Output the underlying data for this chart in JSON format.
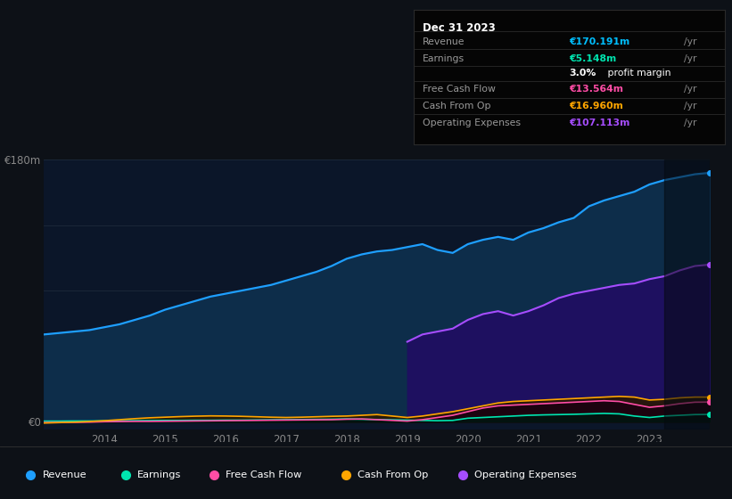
{
  "bg_color": "#0d1117",
  "chart_bg": "#0b1629",
  "title_date": "Dec 31 2023",
  "info": {
    "Revenue": {
      "value": "€170.191m",
      "color": "#00bfff"
    },
    "Earnings": {
      "value": "€5.148m",
      "color": "#00e5b0"
    },
    "profit_pct": "3.0%",
    "profit_text": " profit margin",
    "Free Cash Flow": {
      "value": "€13.564m",
      "color": "#ff4da6"
    },
    "Cash From Op": {
      "value": "€16.960m",
      "color": "#ffa500"
    },
    "Operating Expenses": {
      "value": "€107.113m",
      "color": "#a64dff"
    }
  },
  "years": [
    2013.0,
    2013.25,
    2013.5,
    2013.75,
    2014.0,
    2014.25,
    2014.5,
    2014.75,
    2015.0,
    2015.25,
    2015.5,
    2015.75,
    2016.0,
    2016.25,
    2016.5,
    2016.75,
    2017.0,
    2017.25,
    2017.5,
    2017.75,
    2018.0,
    2018.25,
    2018.5,
    2018.75,
    2019.0,
    2019.25,
    2019.5,
    2019.75,
    2020.0,
    2020.25,
    2020.5,
    2020.75,
    2021.0,
    2021.25,
    2021.5,
    2021.75,
    2022.0,
    2022.25,
    2022.5,
    2022.75,
    2023.0,
    2023.25,
    2023.5,
    2023.75,
    2024.0
  ],
  "revenue": [
    60,
    61,
    62,
    63,
    65,
    67,
    70,
    73,
    77,
    80,
    83,
    86,
    88,
    90,
    92,
    94,
    97,
    100,
    103,
    107,
    112,
    115,
    117,
    118,
    120,
    122,
    118,
    116,
    122,
    125,
    127,
    125,
    130,
    133,
    137,
    140,
    148,
    152,
    155,
    158,
    163,
    166,
    168,
    170,
    171
  ],
  "earnings": [
    0.5,
    0.5,
    0.6,
    0.6,
    0.7,
    0.7,
    0.8,
    0.9,
    1.0,
    1.0,
    1.1,
    1.1,
    1.2,
    1.2,
    1.3,
    1.4,
    1.5,
    1.6,
    1.7,
    1.8,
    2.0,
    1.8,
    1.6,
    1.4,
    1.2,
    1.0,
    0.8,
    1.0,
    2.5,
    3.0,
    3.5,
    4.0,
    4.5,
    4.8,
    5.0,
    5.2,
    5.5,
    5.8,
    5.5,
    4.0,
    3.0,
    4.0,
    4.5,
    5.0,
    5.1
  ],
  "free_cash_flow": [
    -0.5,
    -0.4,
    -0.3,
    -0.2,
    0.1,
    0.2,
    0.3,
    0.3,
    0.4,
    0.5,
    0.6,
    0.7,
    0.8,
    0.9,
    1.0,
    1.1,
    1.2,
    1.3,
    1.4,
    1.5,
    1.8,
    2.0,
    1.5,
    1.0,
    0.5,
    1.5,
    3.0,
    4.5,
    7.0,
    9.5,
    11.0,
    11.5,
    12.0,
    12.5,
    13.0,
    13.5,
    14.0,
    14.5,
    14.0,
    12.0,
    10.0,
    11.0,
    12.5,
    13.5,
    13.6
  ],
  "cash_from_op": [
    -0.8,
    -0.5,
    -0.2,
    0.2,
    0.8,
    1.5,
    2.2,
    2.8,
    3.2,
    3.6,
    3.9,
    4.1,
    4.0,
    3.8,
    3.5,
    3.2,
    3.0,
    3.2,
    3.5,
    3.8,
    4.0,
    4.5,
    5.0,
    4.0,
    3.0,
    4.0,
    5.5,
    7.0,
    9.0,
    11.0,
    13.0,
    14.0,
    14.5,
    15.0,
    15.5,
    16.0,
    16.5,
    17.0,
    17.5,
    17.0,
    15.0,
    15.5,
    16.5,
    17.0,
    17.0
  ],
  "op_expenses_raw": [
    0,
    0,
    0,
    0,
    0,
    0,
    0,
    0,
    0,
    0,
    0,
    0,
    0,
    0,
    0,
    0,
    0,
    0,
    0,
    0,
    0,
    0,
    0,
    0,
    55,
    60,
    62,
    64,
    70,
    74,
    76,
    73,
    76,
    80,
    85,
    88,
    90,
    92,
    94,
    95,
    98,
    100,
    104,
    107,
    108
  ],
  "revenue_color": "#1e9fff",
  "revenue_fill": "#0d2d4a",
  "earnings_color": "#00e5b0",
  "fcf_color": "#ff4da6",
  "cfo_color": "#ffa500",
  "opex_color": "#a64dff",
  "opex_fill": "#1e1060",
  "ylim": [
    -5,
    180
  ],
  "ymin_display": 0,
  "ytick_labels": [
    "€0",
    "€180m"
  ],
  "xticks": [
    2014,
    2015,
    2016,
    2017,
    2018,
    2019,
    2020,
    2021,
    2022,
    2023
  ],
  "legend": [
    {
      "label": "Revenue",
      "color": "#1e9fff"
    },
    {
      "label": "Earnings",
      "color": "#00e5b0"
    },
    {
      "label": "Free Cash Flow",
      "color": "#ff4da6"
    },
    {
      "label": "Cash From Op",
      "color": "#ffa500"
    },
    {
      "label": "Operating Expenses",
      "color": "#a64dff"
    }
  ]
}
